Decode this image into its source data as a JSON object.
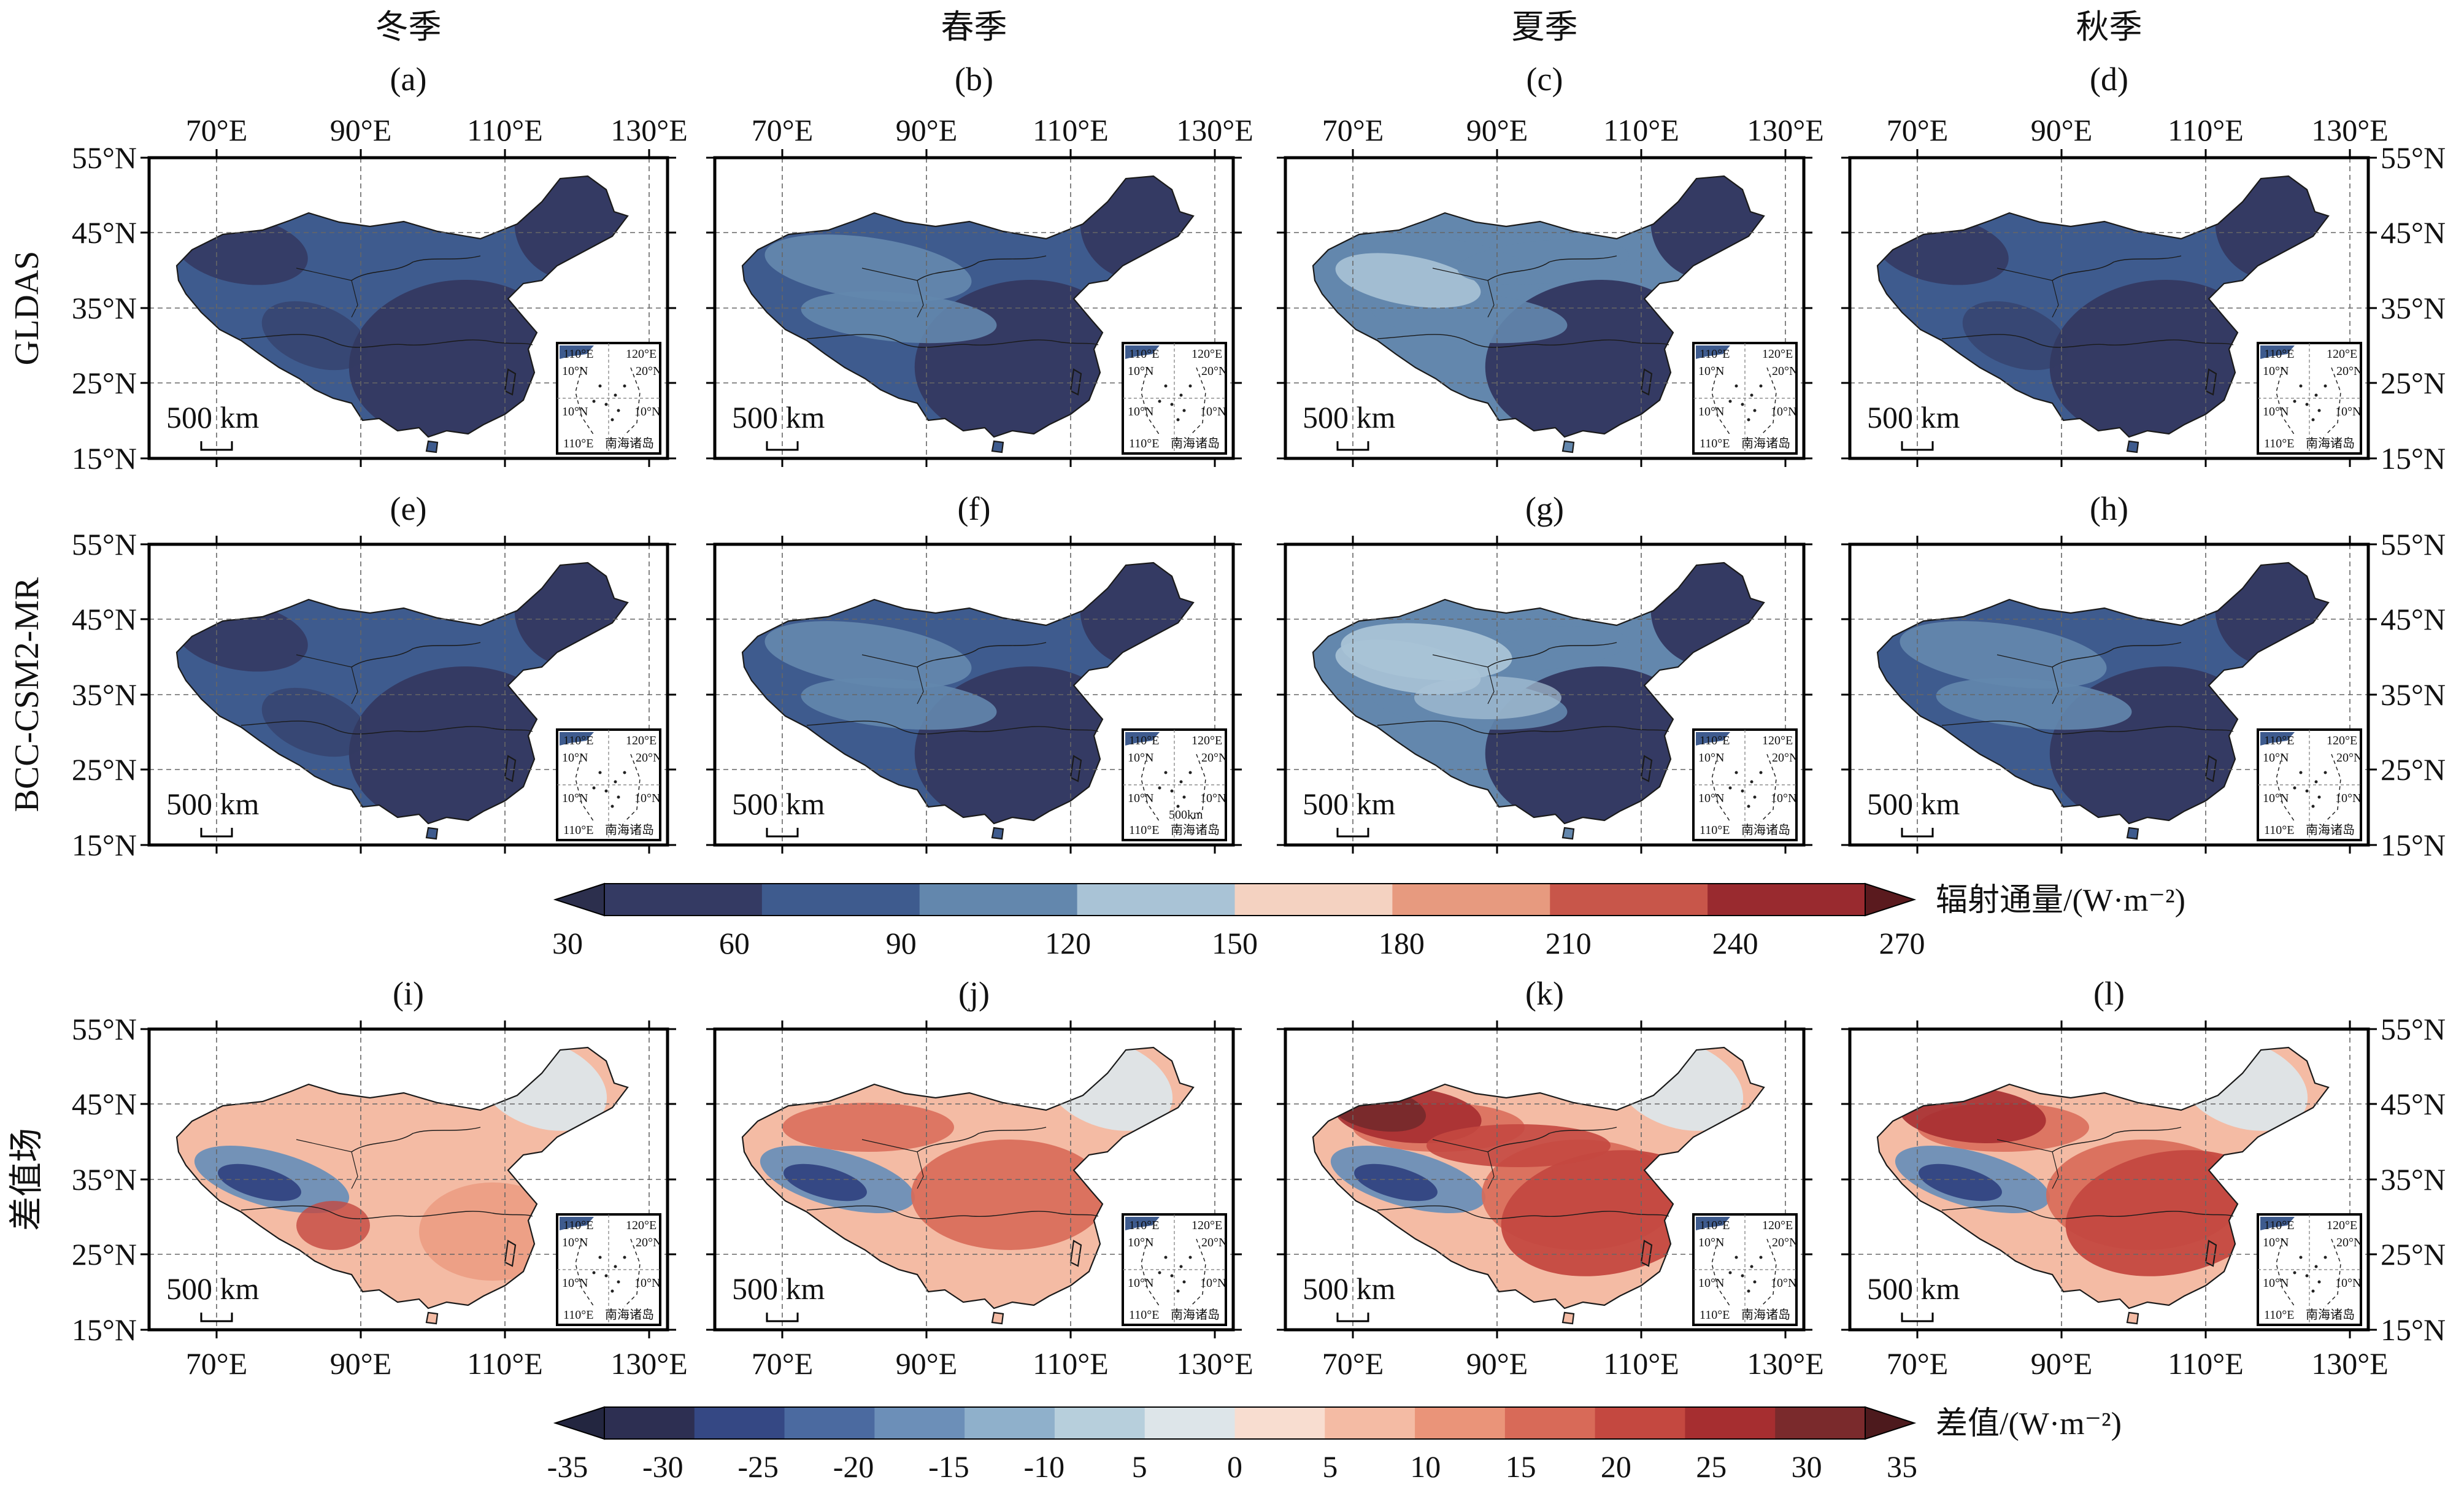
{
  "seasons": [
    "冬季",
    "春季",
    "夏季",
    "秋季"
  ],
  "rows": [
    {
      "label": "GLDAS",
      "panels": [
        "(a)",
        "(b)",
        "(c)",
        "(d)"
      ],
      "field": "flux",
      "intensity": [
        0.3,
        0.42,
        0.55,
        0.36
      ]
    },
    {
      "label": "BCC-CSM2-MR",
      "panels": [
        "(e)",
        "(f)",
        "(g)",
        "(h)"
      ],
      "field": "flux",
      "intensity": [
        0.34,
        0.48,
        0.68,
        0.4
      ]
    },
    {
      "label": "差值场",
      "panels": [
        "(i)",
        "(j)",
        "(k)",
        "(l)"
      ],
      "field": "diff",
      "intensity": [
        0.2,
        0.35,
        0.7,
        0.55
      ]
    }
  ],
  "axes": {
    "lon_ticks": [
      "70°E",
      "90°E",
      "110°E",
      "130°E"
    ],
    "lat_ticks": [
      "55°N",
      "45°N",
      "35°N",
      "25°N",
      "15°N"
    ]
  },
  "scale_bar": "500 km",
  "inset": {
    "lon1": "110°E",
    "lon2": "120°E",
    "lat1": "20°N",
    "lat2": "10°N",
    "caption": "南海诸岛",
    "extra": "500km"
  },
  "colorbar_flux": {
    "title": "辐射通量/(W·m⁻²)",
    "ticks": [
      "30",
      "60",
      "90",
      "120",
      "150",
      "180",
      "210",
      "240",
      "270"
    ],
    "colors": [
      "#343a63",
      "#3e5b8e",
      "#6387ad",
      "#a9c3d6",
      "#f4d2c1",
      "#e79a7f",
      "#c8564a",
      "#992a2f"
    ],
    "ext_low": "#2c2f4d",
    "ext_high": "#5a1a1e"
  },
  "colorbar_diff": {
    "title": "差值/(W·m⁻²)",
    "ticks": [
      "-35",
      "-30",
      "-25",
      "-20",
      "-15",
      "-10",
      "5",
      "0",
      "5",
      "10",
      "15",
      "20",
      "25",
      "30",
      "35"
    ],
    "colors": [
      "#2d2f52",
      "#354884",
      "#4b6aa0",
      "#6c8fb8",
      "#8fb0cb",
      "#b7cfdc",
      "#dde5e9",
      "#f8ddd0",
      "#f4bba4",
      "#ea9479",
      "#d86a58",
      "#c44840",
      "#a62e30",
      "#7a2a2c"
    ],
    "ext_low": "#232640",
    "ext_high": "#4d1a1d"
  }
}
